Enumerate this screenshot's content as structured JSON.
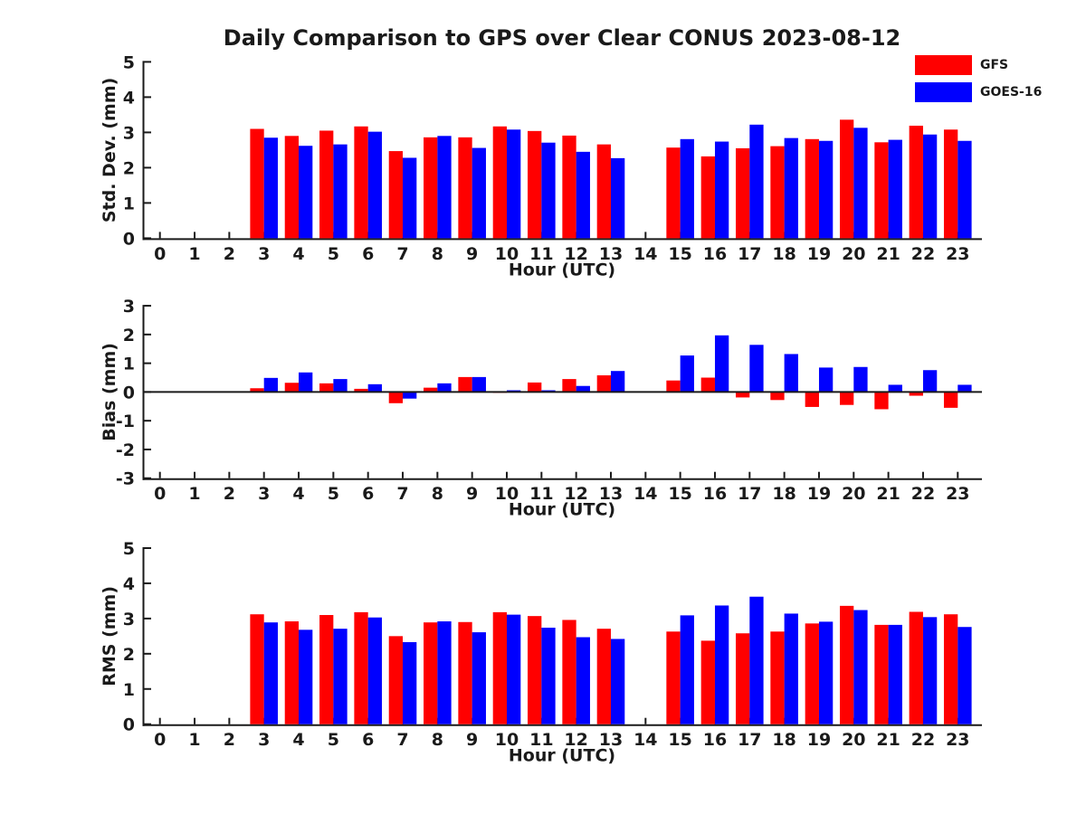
{
  "title": "Daily Comparison to GPS over Clear CONUS 2023-08-12",
  "legend": [
    {
      "label": "GFS",
      "color": "#ff0000"
    },
    {
      "label": "GOES-16",
      "color": "#0000ff"
    }
  ],
  "colors": {
    "gfs": "#ff0000",
    "goes16": "#0000ff",
    "axis": "#1a1a1a",
    "background": "#ffffff"
  },
  "xtick_labels": [
    "0",
    "1",
    "2",
    "3",
    "4",
    "5",
    "6",
    "7",
    "8",
    "9",
    "10",
    "11",
    "12",
    "13",
    "14",
    "15",
    "16",
    "17",
    "18",
    "19",
    "20",
    "21",
    "22",
    "23"
  ],
  "chart_data": [
    {
      "type": "bar",
      "ylabel": "Std. Dev. (mm)",
      "xlabel": "Hour (UTC)",
      "ylim": [
        0,
        5
      ],
      "yticks": [
        "0",
        "1",
        "2",
        "3",
        "4",
        "5"
      ],
      "grid": false,
      "legend_position": "upper-right-outside",
      "categories": [
        0,
        1,
        2,
        3,
        4,
        5,
        6,
        7,
        8,
        9,
        10,
        11,
        12,
        13,
        14,
        15,
        16,
        17,
        18,
        19,
        20,
        21,
        22,
        23
      ],
      "series": [
        {
          "name": "GFS",
          "color": "#ff0000",
          "values": [
            null,
            null,
            null,
            3.1,
            2.9,
            3.05,
            3.17,
            2.47,
            2.86,
            2.86,
            3.17,
            3.04,
            2.91,
            2.66,
            null,
            2.57,
            2.32,
            2.55,
            2.61,
            2.81,
            3.36,
            2.72,
            3.19,
            3.08
          ]
        },
        {
          "name": "GOES-16",
          "color": "#0000ff",
          "values": [
            null,
            null,
            null,
            2.85,
            2.62,
            2.66,
            3.02,
            2.28,
            2.9,
            2.56,
            3.08,
            2.71,
            2.45,
            2.27,
            null,
            2.81,
            2.74,
            3.22,
            2.84,
            2.76,
            3.13,
            2.79,
            2.94,
            2.76
          ]
        }
      ]
    },
    {
      "type": "bar",
      "ylabel": "Bias (mm)",
      "xlabel": "Hour (UTC)",
      "ylim": [
        -3,
        3
      ],
      "yticks": [
        "-3",
        "-2",
        "-1",
        "0",
        "1",
        "2",
        "3"
      ],
      "zero_line": true,
      "grid": false,
      "categories": [
        0,
        1,
        2,
        3,
        4,
        5,
        6,
        7,
        8,
        9,
        10,
        11,
        12,
        13,
        14,
        15,
        16,
        17,
        18,
        19,
        20,
        21,
        22,
        23
      ],
      "series": [
        {
          "name": "GFS",
          "color": "#ff0000",
          "values": [
            null,
            null,
            null,
            0.13,
            0.32,
            0.3,
            0.11,
            -0.39,
            0.15,
            0.52,
            -0.03,
            0.33,
            0.45,
            0.58,
            null,
            0.4,
            0.5,
            -0.19,
            -0.28,
            -0.52,
            -0.45,
            -0.6,
            -0.13,
            -0.55
          ]
        },
        {
          "name": "GOES-16",
          "color": "#0000ff",
          "values": [
            null,
            null,
            null,
            0.49,
            0.68,
            0.45,
            0.27,
            -0.23,
            0.3,
            0.52,
            0.06,
            0.06,
            0.21,
            0.73,
            null,
            1.27,
            1.97,
            1.64,
            1.32,
            0.85,
            0.87,
            0.25,
            0.76,
            0.25
          ]
        }
      ]
    },
    {
      "type": "bar",
      "ylabel": "RMS (mm)",
      "xlabel": "Hour (UTC)",
      "ylim": [
        0,
        5
      ],
      "yticks": [
        "0",
        "1",
        "2",
        "3",
        "4",
        "5"
      ],
      "grid": false,
      "categories": [
        0,
        1,
        2,
        3,
        4,
        5,
        6,
        7,
        8,
        9,
        10,
        11,
        12,
        13,
        14,
        15,
        16,
        17,
        18,
        19,
        20,
        21,
        22,
        23
      ],
      "series": [
        {
          "name": "GFS",
          "color": "#ff0000",
          "values": [
            null,
            null,
            null,
            3.12,
            2.92,
            3.1,
            3.18,
            2.5,
            2.89,
            2.9,
            3.18,
            3.07,
            2.96,
            2.71,
            null,
            2.63,
            2.37,
            2.58,
            2.63,
            2.86,
            3.36,
            2.82,
            3.19,
            3.12
          ]
        },
        {
          "name": "GOES-16",
          "color": "#0000ff",
          "values": [
            null,
            null,
            null,
            2.89,
            2.68,
            2.71,
            3.03,
            2.33,
            2.92,
            2.61,
            3.11,
            2.74,
            2.47,
            2.42,
            null,
            3.09,
            3.37,
            3.62,
            3.14,
            2.91,
            3.24,
            2.82,
            3.04,
            2.76
          ]
        }
      ]
    }
  ]
}
